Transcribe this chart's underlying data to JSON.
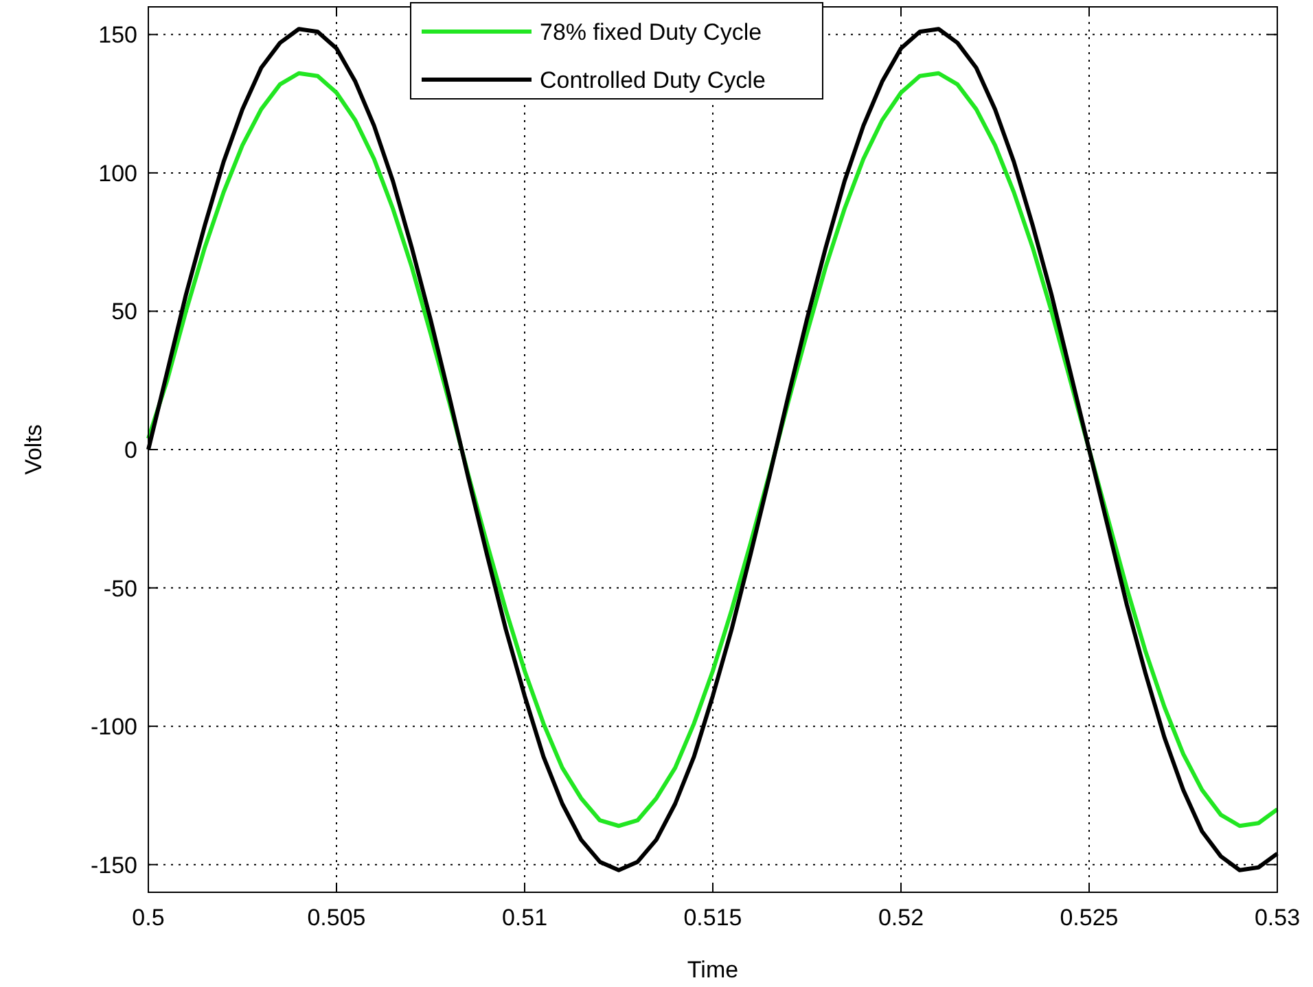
{
  "chart_data": {
    "type": "line",
    "xlabel": "Time",
    "ylabel": "Volts",
    "x": [
      0.5,
      0.5005,
      0.501,
      0.5015,
      0.502,
      0.5025,
      0.503,
      0.5035,
      0.504,
      0.5045,
      0.505,
      0.5055,
      0.506,
      0.5065,
      0.507,
      0.5075,
      0.508,
      0.5085,
      0.509,
      0.5095,
      0.51,
      0.5105,
      0.511,
      0.5115,
      0.512,
      0.5125,
      0.513,
      0.5135,
      0.514,
      0.5145,
      0.515,
      0.5155,
      0.516,
      0.5165,
      0.517,
      0.5175,
      0.518,
      0.5185,
      0.519,
      0.5195,
      0.52,
      0.5205,
      0.521,
      0.5215,
      0.522,
      0.5225,
      0.523,
      0.5235,
      0.524,
      0.5245,
      0.525,
      0.5255,
      0.526,
      0.5265,
      0.527,
      0.5275,
      0.528,
      0.5285,
      0.529,
      0.5295,
      0.53
    ],
    "series": [
      {
        "name": "78% fixed Duty Cycle",
        "color": "#22e622",
        "values": [
          4,
          25,
          50,
          73,
          93,
          110,
          123,
          132,
          136,
          135,
          129,
          119,
          105,
          87,
          66,
          42,
          17,
          -9,
          -34,
          -58,
          -80,
          -99,
          -115,
          -126,
          -134,
          -136,
          -134,
          -126,
          -115,
          -99,
          -80,
          -58,
          -34,
          -9,
          17,
          42,
          66,
          87,
          105,
          119,
          129,
          135,
          136,
          132,
          123,
          110,
          93,
          73,
          50,
          25,
          0,
          -25,
          -50,
          -73,
          -93,
          -110,
          -123,
          -132,
          -136,
          -135,
          -130
        ]
      },
      {
        "name": "Controlled Duty Cycle",
        "color": "#000000",
        "values": [
          0,
          28,
          56,
          81,
          104,
          123,
          138,
          147,
          152,
          151,
          145,
          133,
          117,
          97,
          73,
          47,
          19,
          -10,
          -38,
          -65,
          -89,
          -111,
          -128,
          -141,
          -149,
          -152,
          -149,
          -141,
          -128,
          -111,
          -89,
          -65,
          -38,
          -10,
          19,
          47,
          73,
          97,
          117,
          133,
          145,
          151,
          152,
          147,
          138,
          123,
          104,
          81,
          56,
          28,
          0,
          -28,
          -56,
          -81,
          -104,
          -123,
          -138,
          -147,
          -152,
          -151,
          -146
        ]
      }
    ],
    "xlim": [
      0.5,
      0.53
    ],
    "xticks": [
      0.5,
      0.505,
      0.51,
      0.515,
      0.52,
      0.525,
      0.53
    ],
    "ylim": [
      -160,
      160
    ],
    "yticks": [
      -150,
      -100,
      -50,
      0,
      50,
      100,
      150
    ],
    "grid": true,
    "legend": "top",
    "line_style": "solid"
  }
}
